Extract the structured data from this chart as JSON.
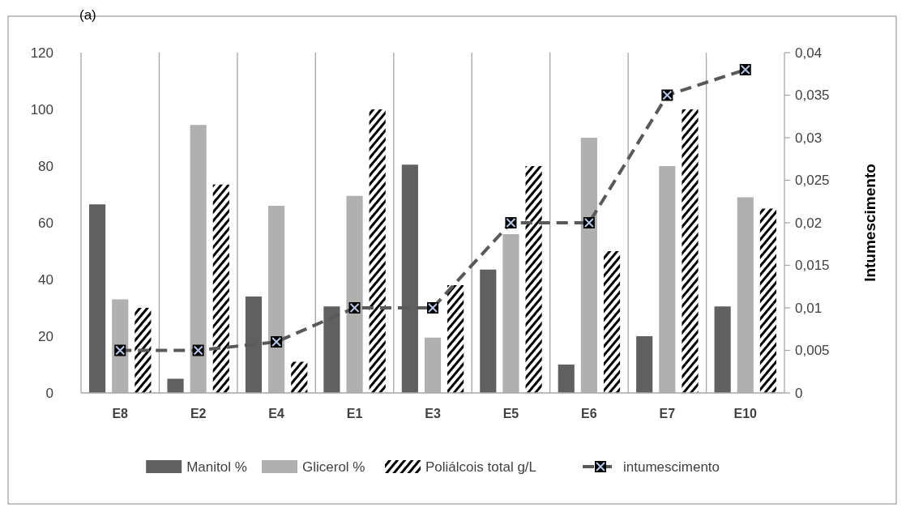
{
  "chart_data": {
    "type": "bar",
    "title": "(a)",
    "y2label": "Intumescimento",
    "categories": [
      "E8",
      "E2",
      "E4",
      "E1",
      "E3",
      "E5",
      "E6",
      "E7",
      "E10"
    ],
    "series": [
      {
        "name": "Manitol %",
        "color": "#606060",
        "values": [
          66.5,
          5,
          34,
          30.5,
          80.5,
          43.5,
          10,
          20,
          30.5
        ]
      },
      {
        "name": "Glicerol %",
        "color": "#b0b0b0",
        "values": [
          33,
          94.5,
          66,
          69.5,
          19.5,
          56,
          90,
          80,
          69
        ]
      },
      {
        "name": "Poliálcois total g/L",
        "color": "#000000",
        "values": [
          30,
          73.5,
          11,
          100,
          38,
          80,
          50,
          100,
          65
        ]
      },
      {
        "name": "intumescimento",
        "type": "line",
        "axis": "y2",
        "color": "#595959",
        "line_style": "dashed",
        "marker": "square",
        "values": [
          0.005,
          0.005,
          0.006,
          0.01,
          0.01,
          0.02,
          0.02,
          0.035,
          0.038
        ]
      }
    ],
    "ylim": [
      0,
      120
    ],
    "yticks": [
      0,
      20,
      40,
      60,
      80,
      100,
      120
    ],
    "y2lim": [
      0,
      0.04
    ],
    "y2ticks": [
      {
        "value": 0,
        "label": "0"
      },
      {
        "value": 0.005,
        "label": "0,005"
      },
      {
        "value": 0.01,
        "label": "0,01"
      },
      {
        "value": 0.015,
        "label": "0,015"
      },
      {
        "value": 0.02,
        "label": "0,02"
      },
      {
        "value": 0.025,
        "label": "0,025"
      },
      {
        "value": 0.03,
        "label": "0,03"
      },
      {
        "value": 0.035,
        "label": "0,035"
      },
      {
        "value": 0.04,
        "label": "0,04"
      }
    ],
    "grid": "x",
    "legend": "bottom"
  }
}
